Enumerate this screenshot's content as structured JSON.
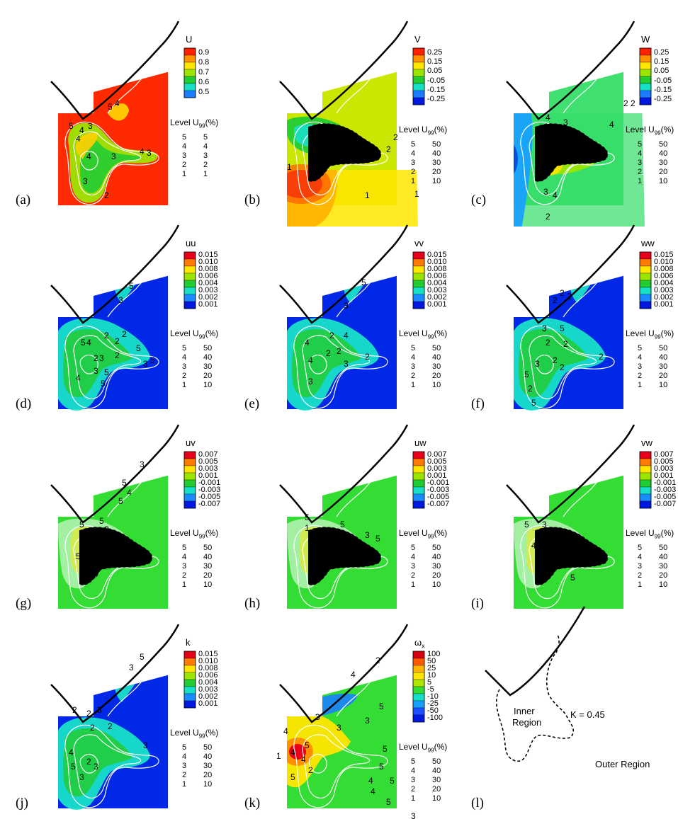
{
  "chart_data": [
    {
      "panel": "(a)",
      "type": "heatmap",
      "title": "U",
      "colorbar": {
        "ticks": [
          "0.9",
          "0.8",
          "0.7",
          "0.6",
          "0.5"
        ]
      },
      "bg_color": "#ff2a00",
      "legend": {
        "title": "Level U",
        "sub": "99",
        "unit": "(%)",
        "rows": [
          [
            "5",
            "5"
          ],
          [
            "4",
            "4"
          ],
          [
            "3",
            "3"
          ],
          [
            "2",
            "2"
          ],
          [
            "1",
            "1"
          ]
        ]
      }
    },
    {
      "panel": "(b)",
      "type": "heatmap",
      "title": "V",
      "colorbar": {
        "ticks": [
          "0.25",
          "0.15",
          "0.05",
          "-0.05",
          "-0.15",
          "-0.25"
        ]
      },
      "bg_color": "#cbe600",
      "legend": {
        "title": "Level U",
        "sub": "99",
        "unit": "(%)",
        "rows": [
          [
            "5",
            "50"
          ],
          [
            "4",
            "40"
          ],
          [
            "3",
            "30"
          ],
          [
            "2",
            "20"
          ],
          [
            "1",
            "10"
          ]
        ]
      }
    },
    {
      "panel": "(c)",
      "type": "heatmap",
      "title": "W",
      "colorbar": {
        "ticks": [
          "0.25",
          "0.15",
          "0.05",
          "-0.05",
          "-0.15",
          "-0.25"
        ]
      },
      "bg_color": "#40e070",
      "legend": {
        "title": "Level U",
        "sub": "99",
        "unit": "(%)",
        "rows": [
          [
            "5",
            "50"
          ],
          [
            "4",
            "40"
          ],
          [
            "3",
            "30"
          ],
          [
            "2",
            "20"
          ],
          [
            "1",
            "10"
          ]
        ]
      }
    },
    {
      "panel": "(d)",
      "type": "heatmap",
      "title": "uu",
      "colorbar": {
        "ticks": [
          "0.015",
          "0.010",
          "0.008",
          "0.006",
          "0.004",
          "0.003",
          "0.002",
          "0.001"
        ]
      },
      "bg_color": "#0028e6",
      "legend": {
        "title": "Level U",
        "sub": "99",
        "unit": "(%)",
        "rows": [
          [
            "5",
            "50"
          ],
          [
            "4",
            "40"
          ],
          [
            "3",
            "30"
          ],
          [
            "2",
            "20"
          ],
          [
            "1",
            "10"
          ]
        ]
      }
    },
    {
      "panel": "(e)",
      "type": "heatmap",
      "title": "vv",
      "colorbar": {
        "ticks": [
          "0.015",
          "0.010",
          "0.008",
          "0.006",
          "0.004",
          "0.003",
          "0.002",
          "0.001"
        ]
      },
      "bg_color": "#0028e6",
      "legend": {
        "title": "Level U",
        "sub": "99",
        "unit": "(%)",
        "rows": [
          [
            "5",
            "50"
          ],
          [
            "4",
            "40"
          ],
          [
            "3",
            "30"
          ],
          [
            "2",
            "20"
          ],
          [
            "1",
            "10"
          ]
        ]
      }
    },
    {
      "panel": "(f)",
      "type": "heatmap",
      "title": "ww",
      "colorbar": {
        "ticks": [
          "0.015",
          "0.010",
          "0.008",
          "0.006",
          "0.004",
          "0.003",
          "0.002",
          "0.001"
        ]
      },
      "bg_color": "#0028e6",
      "legend": {
        "title": "Level U",
        "sub": "99",
        "unit": "(%)",
        "rows": [
          [
            "5",
            "50"
          ],
          [
            "4",
            "40"
          ],
          [
            "3",
            "30"
          ],
          [
            "2",
            "20"
          ],
          [
            "1",
            "10"
          ]
        ]
      }
    },
    {
      "panel": "(g)",
      "type": "heatmap",
      "title": "uv",
      "colorbar": {
        "ticks": [
          "0.007",
          "0.005",
          "0.003",
          "0.001",
          "-0.001",
          "-0.003",
          "-0.005",
          "-0.007"
        ]
      },
      "bg_color": "#33dd33",
      "legend": {
        "title": "Level U",
        "sub": "99",
        "unit": "(%)",
        "rows": [
          [
            "5",
            "50"
          ],
          [
            "4",
            "40"
          ],
          [
            "3",
            "30"
          ],
          [
            "2",
            "20"
          ],
          [
            "1",
            "10"
          ]
        ]
      }
    },
    {
      "panel": "(h)",
      "type": "heatmap",
      "title": "uw",
      "colorbar": {
        "ticks": [
          "0.007",
          "0.005",
          "0.003",
          "0.001",
          "-0.001",
          "-0.003",
          "-0.005",
          "-0.007"
        ]
      },
      "bg_color": "#33dd33",
      "legend": {
        "title": "Level U",
        "sub": "99",
        "unit": "(%)",
        "rows": [
          [
            "5",
            "50"
          ],
          [
            "4",
            "40"
          ],
          [
            "3",
            "30"
          ],
          [
            "2",
            "20"
          ],
          [
            "1",
            "10"
          ]
        ]
      }
    },
    {
      "panel": "(i)",
      "type": "heatmap",
      "title": "vw",
      "colorbar": {
        "ticks": [
          "0.007",
          "0.005",
          "0.003",
          "0.001",
          "-0.001",
          "-0.003",
          "-0.005",
          "-0.007"
        ]
      },
      "bg_color": "#33dd33",
      "legend": {
        "title": "Level U",
        "sub": "99",
        "unit": "(%)",
        "rows": [
          [
            "5",
            "50"
          ],
          [
            "4",
            "40"
          ],
          [
            "3",
            "30"
          ],
          [
            "2",
            "20"
          ],
          [
            "1",
            "10"
          ]
        ]
      }
    },
    {
      "panel": "(j)",
      "type": "heatmap",
      "title": "k",
      "colorbar": {
        "ticks": [
          "0.015",
          "0.010",
          "0.008",
          "0.006",
          "0.004",
          "0.003",
          "0.002",
          "0.001"
        ]
      },
      "bg_color": "#0028e6",
      "legend": {
        "title": "Level U",
        "sub": "99",
        "unit": "(%)",
        "rows": [
          [
            "5",
            "50"
          ],
          [
            "4",
            "40"
          ],
          [
            "3",
            "30"
          ],
          [
            "2",
            "20"
          ],
          [
            "1",
            "10"
          ]
        ]
      }
    },
    {
      "panel": "(k)",
      "type": "heatmap",
      "title": "ω",
      "title_sub": "x",
      "colorbar": {
        "ticks": [
          "100",
          "50",
          "25",
          "10",
          "5",
          "-5",
          "-10",
          "-25",
          "-50",
          "-100"
        ]
      },
      "bg_color": "#33dd33",
      "legend": {
        "title": "Level U",
        "sub": "99",
        "unit": "(%)",
        "rows": [
          [
            "5",
            "50"
          ],
          [
            "4",
            "40"
          ],
          [
            "3",
            "30"
          ],
          [
            "2",
            "20"
          ],
          [
            "1",
            "10"
          ]
        ]
      }
    }
  ],
  "schematic": {
    "panel": "(l)",
    "inner_label": [
      "Inner",
      "Region"
    ],
    "k_label": "K = 0.45",
    "outer_label": "Outer Region"
  },
  "colors": {
    "cb8": [
      "#e8001a",
      "#ff7a00",
      "#ffe600",
      "#9be600",
      "#22cc33",
      "#18e0c8",
      "#1a8cff",
      "#0018e0"
    ],
    "cb5": [
      "#ff2000",
      "#ff9000",
      "#ffe600",
      "#9be600",
      "#22cc33",
      "#18e0c8",
      "#1a7cff"
    ],
    "cb10": [
      "#d80010",
      "#ff5a00",
      "#ffb400",
      "#ffe600",
      "#b0e600",
      "#33dd33",
      "#18e0c8",
      "#1aa0ff",
      "#1a50ff",
      "#0018e0"
    ],
    "contour": "#ffffff"
  }
}
